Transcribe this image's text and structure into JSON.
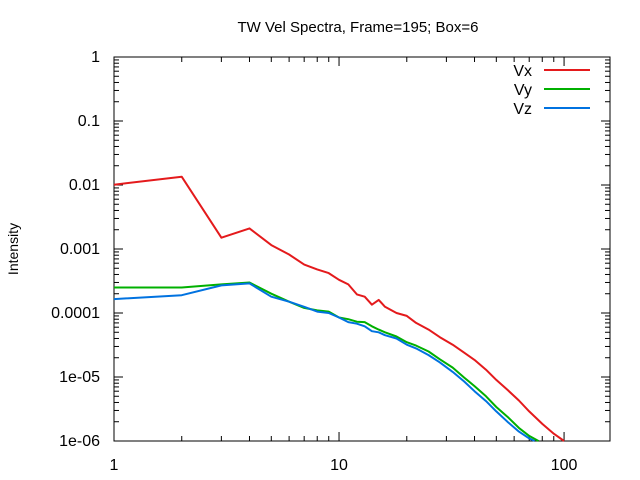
{
  "chart_data": {
    "type": "line",
    "title": "TW Vel Spectra, Frame=195; Box=6",
    "xlabel": "",
    "ylabel": "Intensity",
    "xscale": "log",
    "yscale": "log",
    "xlim": [
      1,
      160
    ],
    "ylim": [
      1e-06,
      1
    ],
    "grid": false,
    "legend_position": "top-right",
    "x_ticks": [
      {
        "value": 1,
        "label": "1"
      },
      {
        "value": 10,
        "label": "10"
      },
      {
        "value": 100,
        "label": "100"
      }
    ],
    "y_ticks": [
      {
        "value": 1,
        "label": "1"
      },
      {
        "value": 0.1,
        "label": "0.1"
      },
      {
        "value": 0.01,
        "label": "0.01"
      },
      {
        "value": 0.001,
        "label": "0.001"
      },
      {
        "value": 0.0001,
        "label": "0.0001"
      },
      {
        "value": 1e-05,
        "label": "1e-05"
      },
      {
        "value": 1e-06,
        "label": "1e-06"
      }
    ],
    "series": [
      {
        "name": "Vx",
        "color": "#e41a1c",
        "x": [
          1,
          2,
          3,
          4,
          5,
          6,
          7,
          8,
          9,
          10,
          11,
          12,
          13,
          14,
          15,
          16,
          18,
          20,
          22,
          25,
          28,
          32,
          36,
          40,
          45,
          50,
          56,
          63,
          70,
          80,
          90,
          100
        ],
        "y": [
          0.0101,
          0.0135,
          0.0015,
          0.0021,
          0.00115,
          0.00082,
          0.00057,
          0.00048,
          0.00042,
          0.00033,
          0.00028,
          0.000195,
          0.00018,
          0.000135,
          0.00016,
          0.000125,
          0.0001,
          9e-05,
          7e-05,
          5.5e-05,
          4.2e-05,
          3.2e-05,
          2.4e-05,
          1.85e-05,
          1.3e-05,
          9e-06,
          6.3e-06,
          4.3e-06,
          2.9e-06,
          1.85e-06,
          1.3e-06,
          1e-06
        ]
      },
      {
        "name": "Vy",
        "color": "#00b000",
        "x": [
          1,
          2,
          3,
          4,
          5,
          6,
          7,
          8,
          9,
          10,
          11,
          12,
          13,
          14,
          15,
          16,
          18,
          20,
          22,
          25,
          28,
          32,
          36,
          40,
          45,
          50,
          56,
          63,
          70,
          77
        ],
        "y": [
          0.00025,
          0.00025,
          0.00028,
          0.0003,
          0.0002,
          0.00015,
          0.00012,
          0.00011,
          0.000105,
          8.5e-05,
          8e-05,
          7.3e-05,
          7.2e-05,
          6.2e-05,
          5.5e-05,
          5e-05,
          4.3e-05,
          3.5e-05,
          3.1e-05,
          2.5e-05,
          1.9e-05,
          1.4e-05,
          9.8e-06,
          7.2e-06,
          5e-06,
          3.4e-06,
          2.4e-06,
          1.6e-06,
          1.2e-06,
          1e-06
        ]
      },
      {
        "name": "Vz",
        "color": "#0072e0",
        "x": [
          1,
          2,
          3,
          4,
          5,
          6,
          7,
          8,
          9,
          10,
          11,
          12,
          13,
          14,
          15,
          16,
          18,
          20,
          22,
          25,
          28,
          32,
          36,
          40,
          45,
          50,
          56,
          63,
          70,
          74
        ],
        "y": [
          0.000165,
          0.00019,
          0.00027,
          0.00029,
          0.00018,
          0.00015,
          0.000125,
          0.000105,
          0.0001,
          8.5e-05,
          7.2e-05,
          6.8e-05,
          6.2e-05,
          5.2e-05,
          5e-05,
          4.5e-05,
          4e-05,
          3.2e-05,
          2.8e-05,
          2.2e-05,
          1.7e-05,
          1.2e-05,
          8.5e-06,
          6e-06,
          4.2e-06,
          2.9e-06,
          2e-06,
          1.4e-06,
          1.1e-06,
          1e-06
        ]
      }
    ]
  }
}
